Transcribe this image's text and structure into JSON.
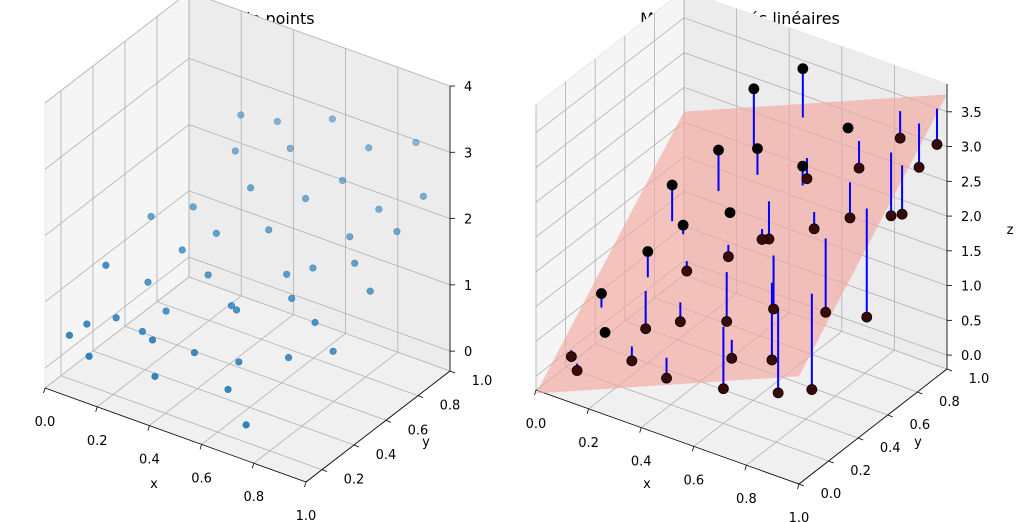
{
  "chart_data": [
    {
      "type": "scatter",
      "title": "Nuage de points",
      "xlabel": "x",
      "ylabel": "y",
      "zlabel": "",
      "xlim": [
        0.0,
        1.0
      ],
      "ylim": [
        0.1,
        1.0
      ],
      "zlim": [
        -0.3,
        4.0
      ],
      "x_ticks": [
        "0.0",
        "0.2",
        "0.4",
        "0.6",
        "0.8",
        "1.0"
      ],
      "y_ticks": [
        "0.2",
        "0.4",
        "0.6",
        "0.8",
        "1.0"
      ],
      "z_ticks": [
        "0",
        "1",
        "2",
        "3",
        "4"
      ],
      "grid": true,
      "point_color": "#1f77b4",
      "points": [
        [
          0.02,
          0.22,
          0.3
        ],
        [
          0.05,
          0.28,
          0.4
        ],
        [
          0.08,
          0.35,
          1.2
        ],
        [
          0.1,
          0.6,
          1.5
        ],
        [
          0.12,
          0.18,
          0.2
        ],
        [
          0.15,
          0.3,
          0.6
        ],
        [
          0.18,
          0.45,
          0.9
        ],
        [
          0.2,
          0.7,
          1.6
        ],
        [
          0.22,
          0.35,
          0.4
        ],
        [
          0.25,
          0.55,
          1.3
        ],
        [
          0.28,
          0.4,
          0.7
        ],
        [
          0.3,
          0.8,
          2.4
        ],
        [
          0.32,
          0.25,
          0.6
        ],
        [
          0.35,
          0.6,
          1.6
        ],
        [
          0.38,
          0.5,
          1.2
        ],
        [
          0.4,
          0.9,
          2.8
        ],
        [
          0.42,
          0.7,
          2.2
        ],
        [
          0.45,
          0.3,
          0.5
        ],
        [
          0.48,
          0.85,
          2.6
        ],
        [
          0.5,
          0.45,
          1.0
        ],
        [
          0.52,
          0.65,
          1.8
        ],
        [
          0.55,
          0.4,
          1.1
        ],
        [
          0.58,
          0.95,
          3.0
        ],
        [
          0.6,
          0.75,
          2.2
        ],
        [
          0.62,
          0.3,
          0.6
        ],
        [
          0.65,
          0.55,
          1.5
        ],
        [
          0.68,
          0.85,
          2.4
        ],
        [
          0.7,
          0.5,
          1.3
        ],
        [
          0.72,
          0.6,
          1.6
        ],
        [
          0.75,
          0.9,
          2.9
        ],
        [
          0.78,
          0.35,
          0.8
        ],
        [
          0.8,
          0.7,
          2.0
        ],
        [
          0.82,
          0.45,
          1.2
        ],
        [
          0.85,
          0.8,
          2.3
        ],
        [
          0.88,
          0.6,
          1.9
        ],
        [
          0.9,
          0.95,
          3.1
        ],
        [
          0.92,
          0.4,
          1.0
        ],
        [
          0.95,
          0.75,
          2.2
        ],
        [
          0.97,
          0.55,
          1.7
        ],
        [
          0.99,
          0.85,
          2.6
        ],
        [
          0.36,
          0.2,
          0.2
        ],
        [
          0.64,
          0.2,
          0.4
        ],
        [
          0.26,
          0.9,
          2.7
        ],
        [
          0.74,
          0.15,
          0.1
        ]
      ]
    },
    {
      "type": "scatter",
      "title": "Moindres carrés linéaires",
      "xlabel": "x",
      "ylabel": "y",
      "zlabel": "z",
      "xlim": [
        0.0,
        1.0
      ],
      "ylim": [
        0.0,
        1.0
      ],
      "zlim": [
        -0.2,
        3.9
      ],
      "x_ticks": [
        "0.0",
        "0.2",
        "0.4",
        "0.6",
        "0.8",
        "1.0"
      ],
      "y_ticks": [
        "0.0",
        "0.2",
        "0.4",
        "0.6",
        "0.8",
        "1.0"
      ],
      "z_ticks": [
        "0.0",
        "0.5",
        "1.0",
        "1.5",
        "2.0",
        "2.5",
        "3.0",
        "3.5"
      ],
      "grid": true,
      "plane": {
        "intercept": -0.25,
        "coef_x": 1.6,
        "coef_y": 2.4,
        "color": "#f4a7a0"
      },
      "point_color": "#000000",
      "residual_color": "#0000ff",
      "points": [
        [
          0.05,
          0.15,
          0.1
        ],
        [
          0.08,
          0.3,
          0.8
        ],
        [
          0.1,
          0.1,
          0.05
        ],
        [
          0.15,
          0.2,
          0.5
        ],
        [
          0.2,
          0.4,
          1.4
        ],
        [
          0.22,
          0.35,
          0.4
        ],
        [
          0.25,
          0.55,
          1.6
        ],
        [
          0.28,
          0.15,
          0.35
        ],
        [
          0.3,
          0.7,
          2.5
        ],
        [
          0.32,
          0.45,
          1.2
        ],
        [
          0.35,
          0.85,
          3.2
        ],
        [
          0.38,
          0.3,
          0.8
        ],
        [
          0.4,
          0.6,
          1.9
        ],
        [
          0.42,
          0.75,
          2.6
        ],
        [
          0.45,
          0.5,
          1.5
        ],
        [
          0.48,
          0.95,
          3.5
        ],
        [
          0.5,
          0.4,
          0.8
        ],
        [
          0.52,
          0.65,
          1.6
        ],
        [
          0.55,
          0.55,
          1.8
        ],
        [
          0.58,
          0.8,
          2.3
        ],
        [
          0.6,
          0.2,
          0.3
        ],
        [
          0.62,
          0.7,
          2.7
        ],
        [
          0.65,
          0.45,
          1.1
        ],
        [
          0.68,
          0.9,
          3.0
        ],
        [
          0.7,
          0.35,
          0.6
        ],
        [
          0.72,
          0.6,
          2.1
        ],
        [
          0.75,
          0.85,
          2.6
        ],
        [
          0.78,
          0.25,
          0.4
        ],
        [
          0.8,
          0.7,
          2.2
        ],
        [
          0.82,
          0.5,
          1.2
        ],
        [
          0.85,
          0.95,
          3.0
        ],
        [
          0.88,
          0.3,
          0.5
        ],
        [
          0.9,
          0.8,
          2.2
        ],
        [
          0.92,
          0.6,
          1.1
        ],
        [
          0.95,
          0.9,
          2.8
        ],
        [
          0.97,
          0.75,
          2.4
        ],
        [
          0.99,
          0.95,
          3.1
        ],
        [
          0.18,
          0.6,
          2.0
        ],
        [
          0.44,
          0.1,
          0.4
        ],
        [
          0.66,
          0.15,
          0.9
        ]
      ]
    }
  ]
}
